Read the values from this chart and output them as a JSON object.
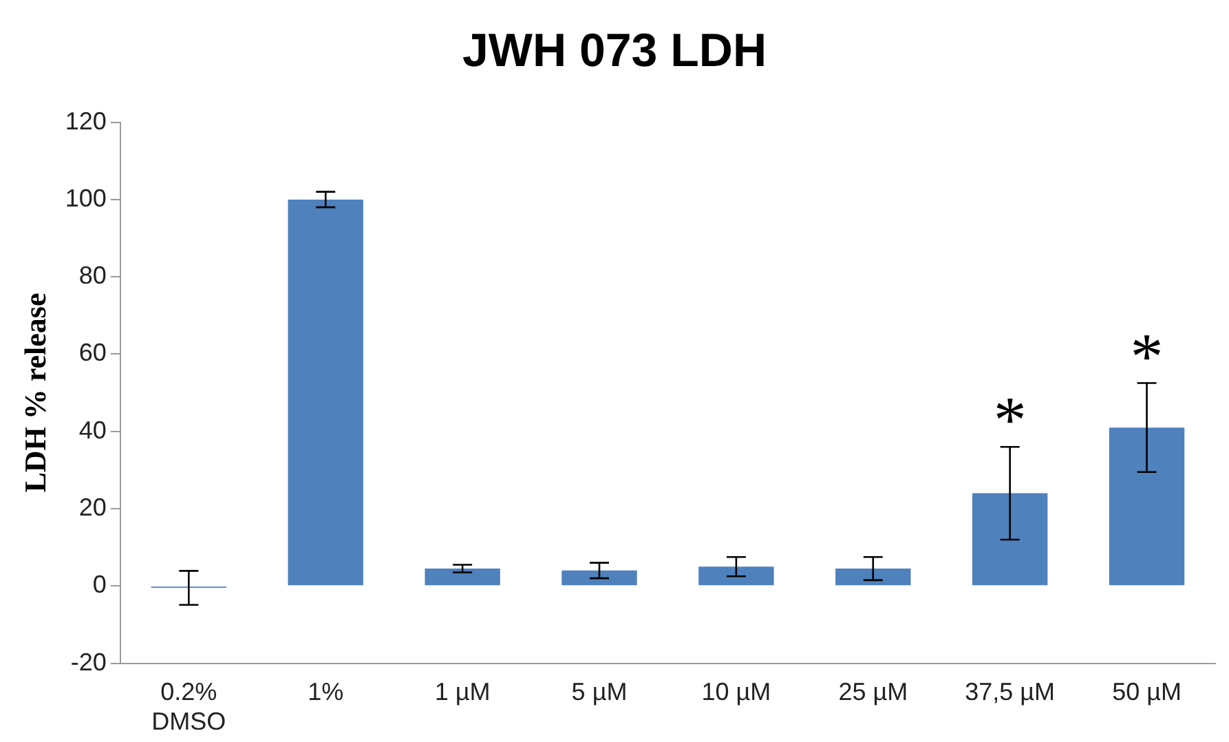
{
  "chart_data": {
    "type": "bar",
    "title": "JWH 073 LDH",
    "ylabel": "LDH % release",
    "categories": [
      "0.2%\nDMSO",
      "1%",
      "1 µM",
      "5 µM",
      "10 µM",
      "25 µM",
      "37,5 µM",
      "50 µM"
    ],
    "values": [
      -0.5,
      100,
      4.5,
      4,
      5,
      4.5,
      24,
      41
    ],
    "errors": [
      4.4,
      2,
      1,
      2,
      2.5,
      3,
      12,
      11.5
    ],
    "color": "#4f81bd",
    "ylim": [
      -20,
      120
    ],
    "yticks": [
      -20,
      0,
      20,
      40,
      60,
      80,
      100,
      120
    ],
    "grid": false,
    "annotations": [
      {
        "text": "*",
        "x": "37,5 µM",
        "y": 36
      },
      {
        "text": "*",
        "x": "50 µM",
        "y": 52.5
      }
    ]
  }
}
